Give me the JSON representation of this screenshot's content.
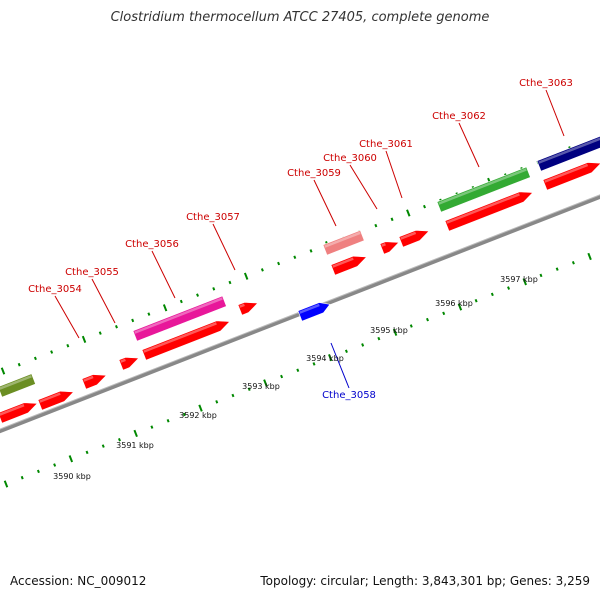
{
  "title": "Clostridium thermocellum ATCC 27405, complete genome",
  "footer": {
    "accession": "Accession: NC_009012",
    "summary": "Topology: circular; Length: 3,843,301 bp; Genes: 3,259"
  },
  "colors": {
    "label_red": "#cc0000",
    "label_blue": "#0000cc",
    "backbone": "#888888",
    "tick": "#008800",
    "gene_red": "#ff0000",
    "gene_pink": "#e8179a",
    "gene_salmon": "#ef8080",
    "gene_green": "#33aa33",
    "gene_olive": "#6b8e23",
    "gene_navy": "#000080",
    "gene_blue": "#0000ff"
  },
  "scale_labels": [
    "3590 kbp",
    "3591 kbp",
    "3592 kbp",
    "3593 kbp",
    "3594 kbp",
    "3595 kbp",
    "3596 kbp",
    "3597 kbp"
  ],
  "gene_labels": [
    {
      "text": "Cthe_3054",
      "color": "red"
    },
    {
      "text": "Cthe_3055",
      "color": "red"
    },
    {
      "text": "Cthe_3056",
      "color": "red"
    },
    {
      "text": "Cthe_3057",
      "color": "red"
    },
    {
      "text": "Cthe_3059",
      "color": "red"
    },
    {
      "text": "Cthe_3060",
      "color": "red"
    },
    {
      "text": "Cthe_3061",
      "color": "red"
    },
    {
      "text": "Cthe_3062",
      "color": "red"
    },
    {
      "text": "Cthe_3063",
      "color": "red"
    },
    {
      "text": "Cthe_3058",
      "color": "blue"
    }
  ],
  "genes": [
    {
      "name": "olive-feature",
      "color": "olive"
    },
    {
      "name": "red-orf-1",
      "color": "red"
    },
    {
      "name": "red-orf-2",
      "color": "red"
    },
    {
      "name": "red-orf-3",
      "color": "red"
    },
    {
      "name": "red-orf-4",
      "color": "red"
    },
    {
      "name": "red-orf-5",
      "color": "red"
    },
    {
      "name": "red-orf-6",
      "color": "red"
    },
    {
      "name": "pink-feature",
      "color": "pink"
    },
    {
      "name": "red-orf-7",
      "color": "red"
    },
    {
      "name": "blue-feature",
      "color": "blue"
    },
    {
      "name": "salmon-feature",
      "color": "salmon"
    },
    {
      "name": "red-orf-8",
      "color": "red"
    },
    {
      "name": "red-orf-9",
      "color": "red"
    },
    {
      "name": "red-orf-10",
      "color": "red"
    },
    {
      "name": "red-orf-11",
      "color": "red"
    },
    {
      "name": "green-feature",
      "color": "green"
    },
    {
      "name": "red-orf-12",
      "color": "red"
    },
    {
      "name": "navy-feature",
      "color": "navy"
    },
    {
      "name": "red-orf-13",
      "color": "red"
    }
  ]
}
